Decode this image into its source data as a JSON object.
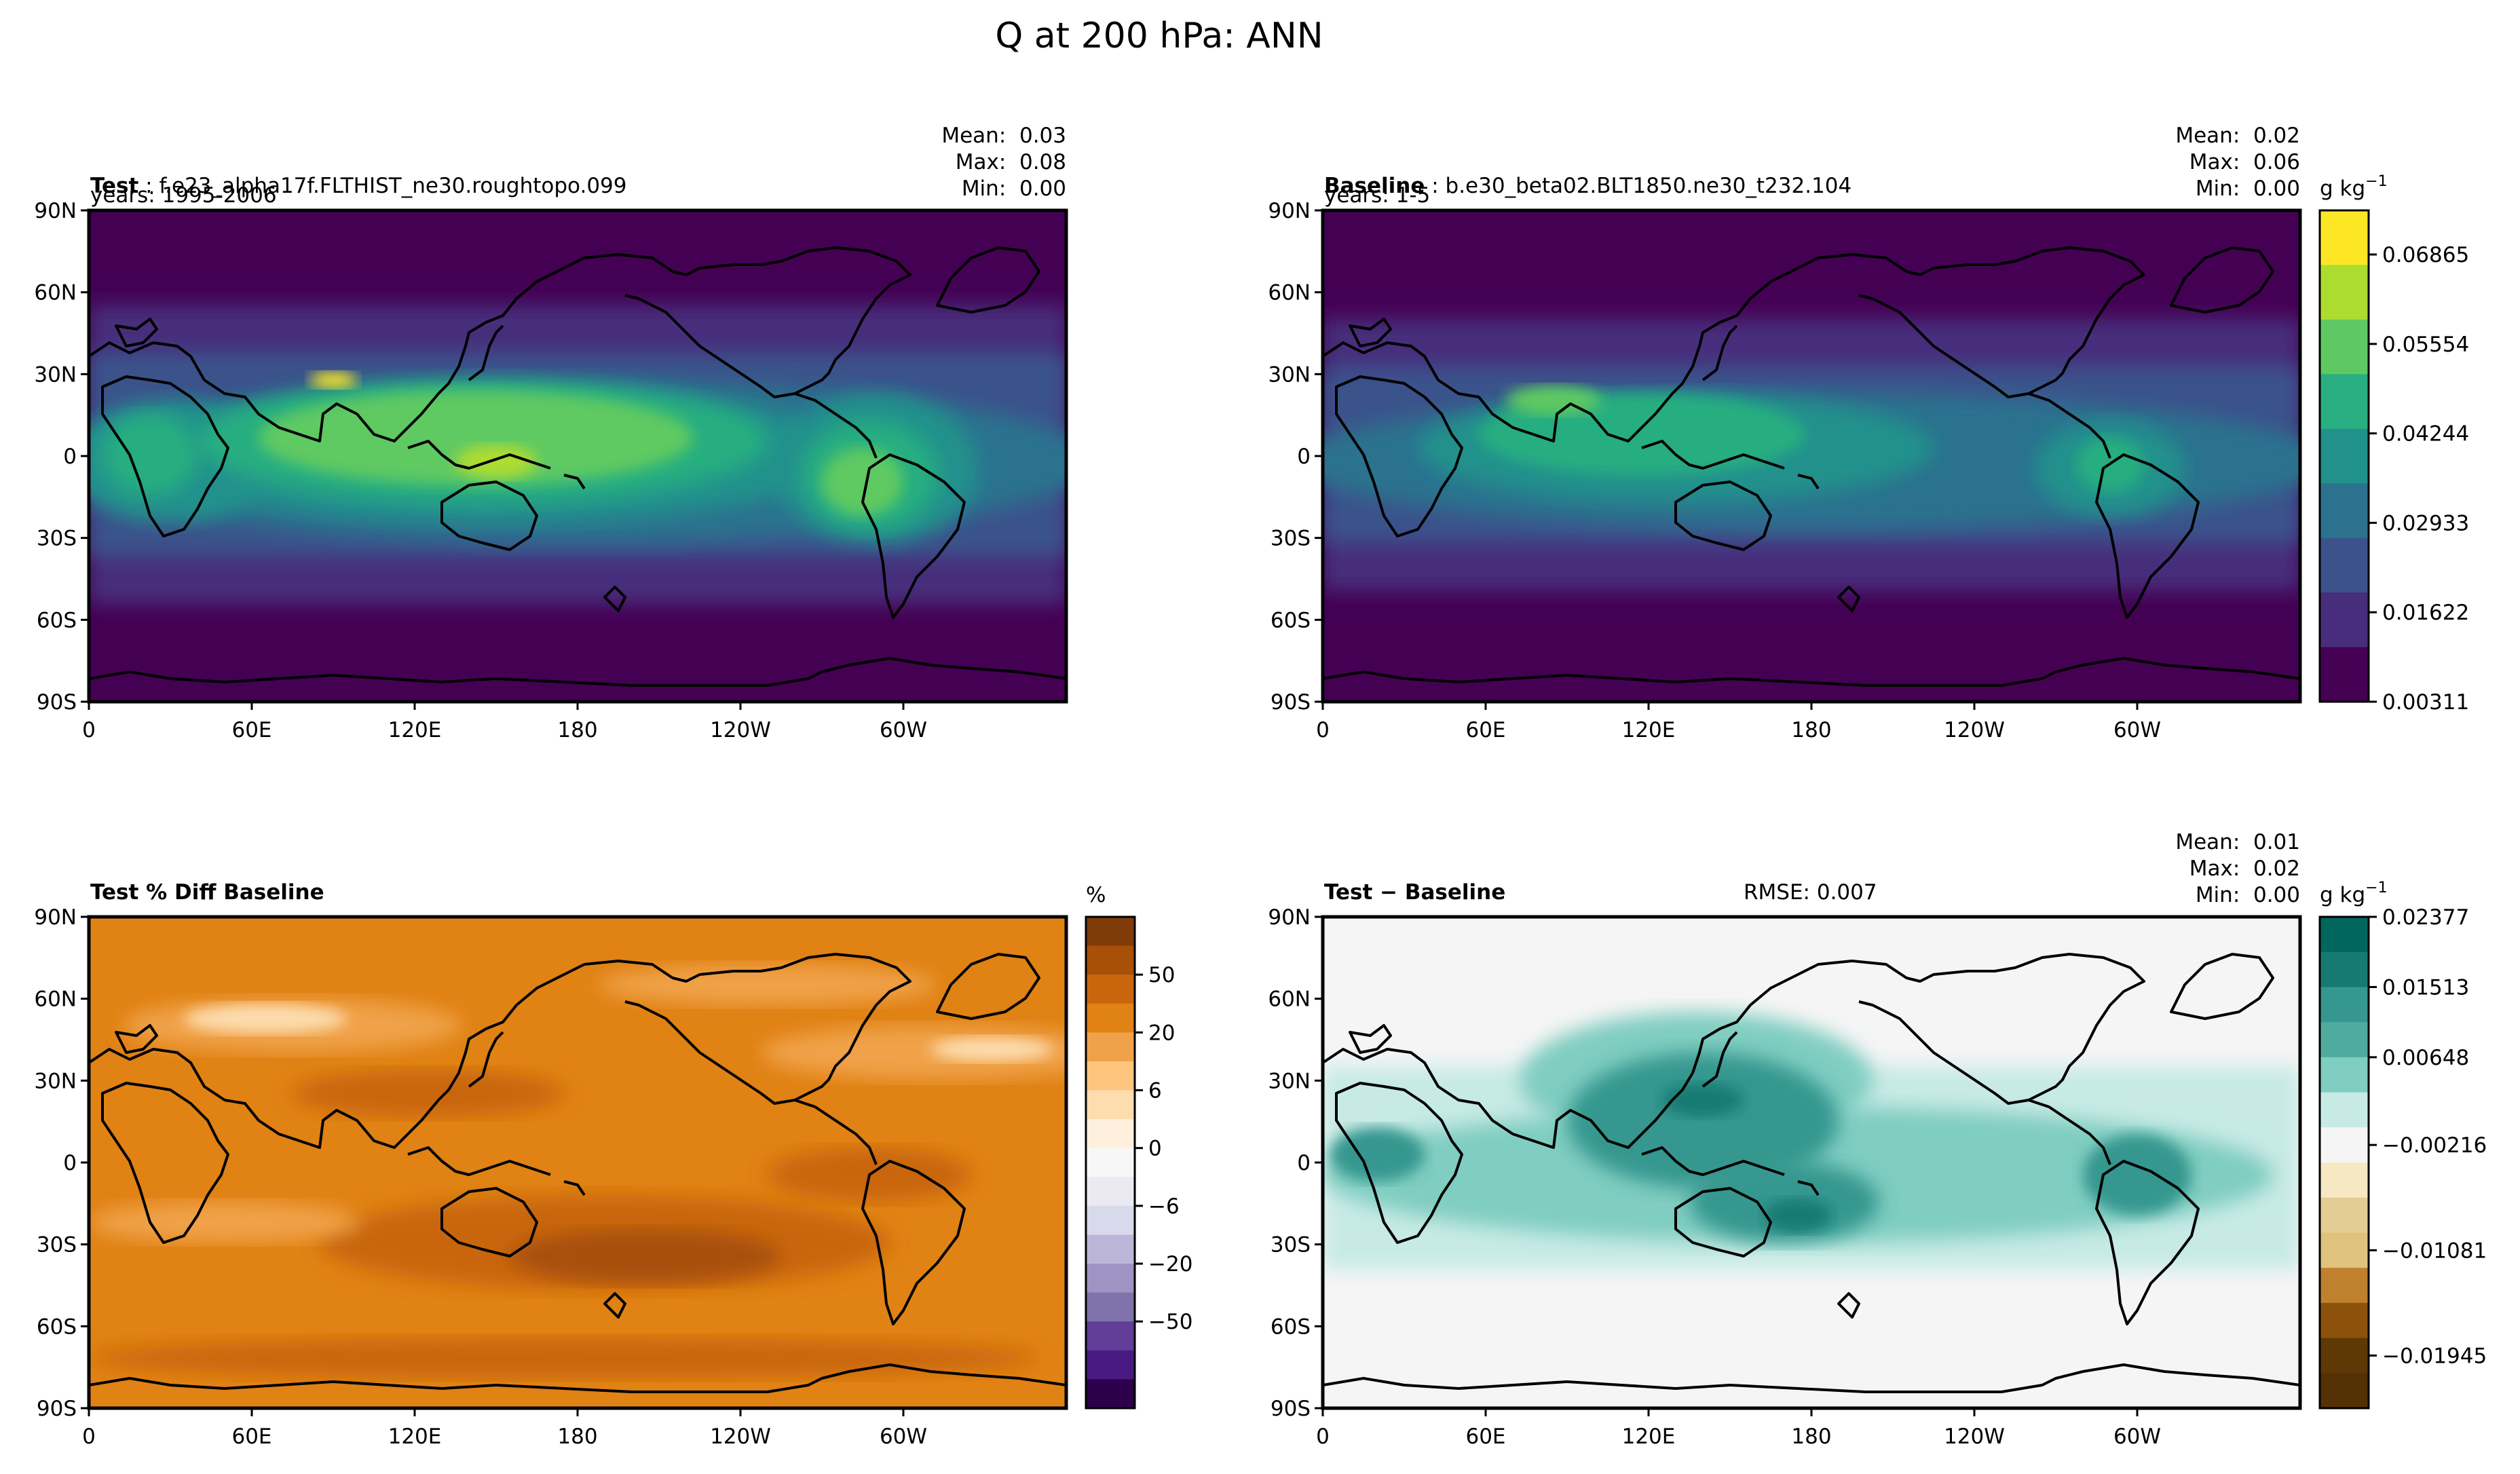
{
  "figure": {
    "title": "Q at 200 hPa: ANN"
  },
  "chart_data": [
    {
      "type": "heatmap",
      "id": "test",
      "title_bold": "Test",
      "title_rest": " : f.e23_alpha17f.FLTHIST_ne30.roughtopo.099",
      "subtitle": "years: 1995-2006",
      "stats": [
        "Mean:  0.03",
        "Max:  0.08",
        "Min:  0.00"
      ],
      "x_ticks": [
        "0",
        "60E",
        "120E",
        "180",
        "120W",
        "60W"
      ],
      "y_ticks": [
        "90N",
        "60N",
        "30N",
        "0",
        "30S",
        "60S",
        "90S"
      ],
      "units": "g kg",
      "palette": [
        "#440154",
        "#472d7b",
        "#3b528b",
        "#2c728e",
        "#21918c",
        "#28ae80",
        "#5ec962",
        "#addc30",
        "#fde725"
      ],
      "levels": [
        0.003,
        0.012,
        0.02,
        0.028,
        0.036,
        0.045,
        0.053,
        0.061,
        0.069
      ]
    },
    {
      "type": "heatmap",
      "id": "baseline",
      "title_bold": "Baseline",
      "title_rest": " : b.e30_beta02.BLT1850.ne30_t232.104",
      "subtitle": "years: 1-5",
      "stats": [
        "Mean:  0.02",
        "Max:  0.06",
        "Min:  0.00"
      ],
      "x_ticks": [
        "0",
        "60E",
        "120E",
        "180",
        "120W",
        "60W"
      ],
      "y_ticks": [
        "90N",
        "60N",
        "30N",
        "0",
        "30S",
        "60S",
        "90S"
      ],
      "units": "g kg",
      "colorbar_label": "g kg",
      "colorbar_exp": "−1",
      "colorbar_ticks": [
        "0.06865",
        "0.05554",
        "0.04244",
        "0.02933",
        "0.01622",
        "0.00311"
      ],
      "colorbar_colors": [
        "#fde725",
        "#addc30",
        "#5ec962",
        "#28ae80",
        "#21918c",
        "#2c728e",
        "#3b528b",
        "#472d7b",
        "#440154"
      ]
    },
    {
      "type": "heatmap",
      "id": "pctdiff",
      "title_bold": "Test % Diff Baseline",
      "title_rest": "",
      "x_ticks": [
        "0",
        "60E",
        "120E",
        "180",
        "120W",
        "60W"
      ],
      "y_ticks": [
        "90N",
        "60N",
        "30N",
        "0",
        "30S",
        "60S",
        "90S"
      ],
      "colorbar_label": "%",
      "colorbar_ticks": [
        "50",
        "20",
        "6",
        "0",
        "−6",
        "−20",
        "−50"
      ],
      "colorbar_colors": [
        "#7f3b08",
        "#a84f08",
        "#c9660d",
        "#e08214",
        "#f0a24a",
        "#fdc57e",
        "#fddcad",
        "#fef0dc",
        "#f7f7f7",
        "#ebe9f2",
        "#d8daeb",
        "#bcb7d9",
        "#9e93c2",
        "#8073ac",
        "#623e98",
        "#4a1a83",
        "#2d004b"
      ]
    },
    {
      "type": "heatmap",
      "id": "diff",
      "title_bold": "Test − Baseline",
      "title_rest": "",
      "rmse": "RMSE: 0.007",
      "stats": [
        "Mean:  0.01",
        "Max:  0.02",
        "Min:  0.00"
      ],
      "x_ticks": [
        "0",
        "60E",
        "120E",
        "180",
        "120W",
        "60W"
      ],
      "y_ticks": [
        "90N",
        "60N",
        "30N",
        "0",
        "30S",
        "60S",
        "90S"
      ],
      "colorbar_label": "g kg",
      "colorbar_exp": "−1",
      "colorbar_ticks": [
        "0.02377",
        "0.01513",
        "0.00648",
        "−0.00216",
        "−0.01081",
        "−0.01945"
      ],
      "colorbar_colors": [
        "#01665e",
        "#167a72",
        "#35978f",
        "#50ab9f",
        "#80cdc1",
        "#c7eae5",
        "#f5f5f5",
        "#f6e8c3",
        "#e3cd94",
        "#dfc27d",
        "#bf812d",
        "#8c510a",
        "#5e3805",
        "#543005"
      ]
    }
  ]
}
